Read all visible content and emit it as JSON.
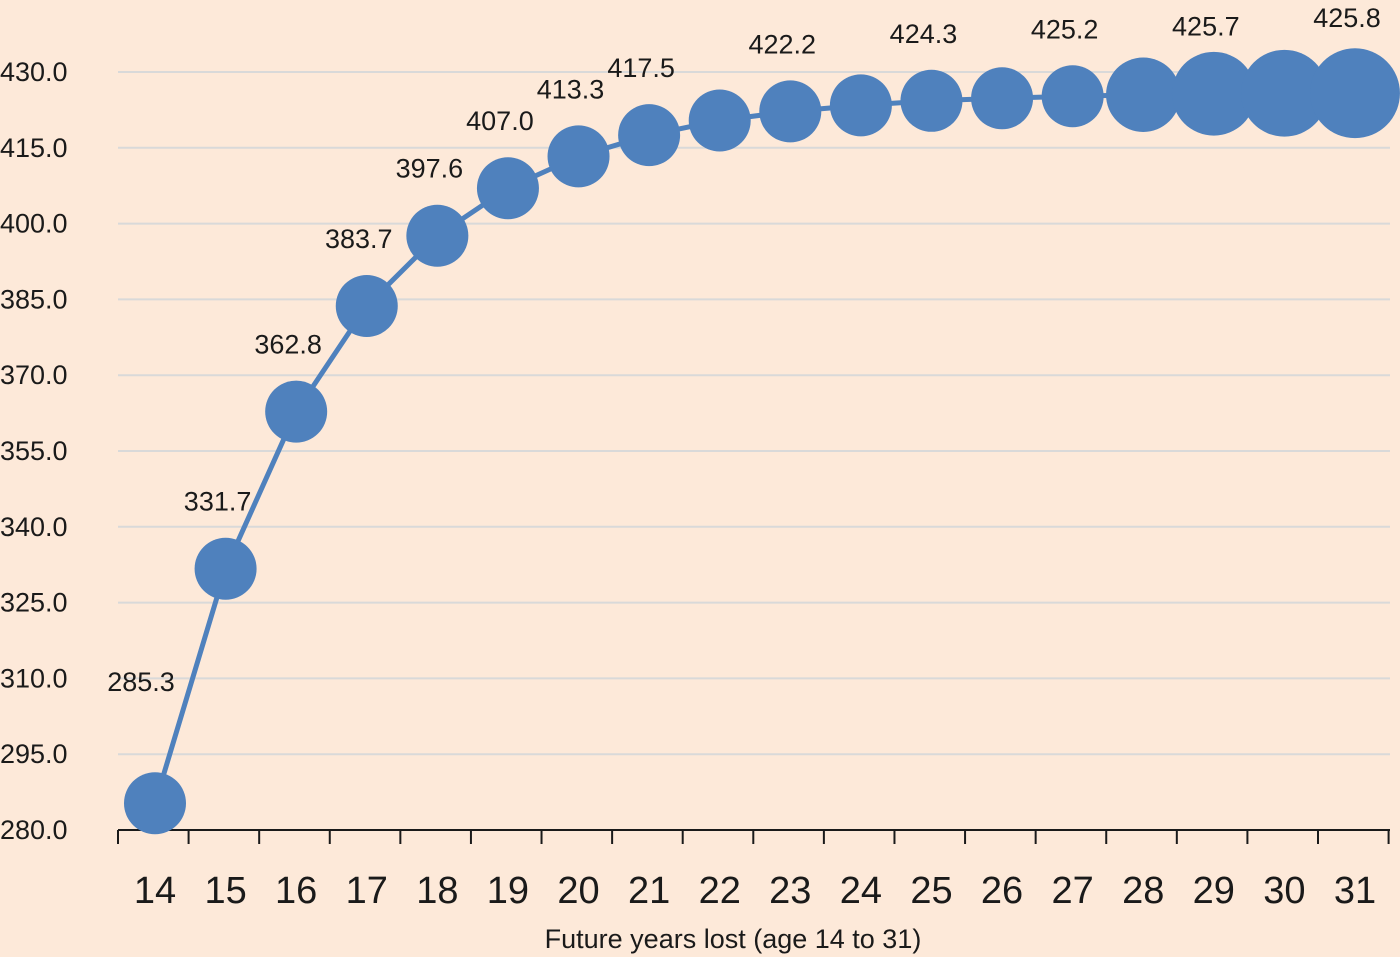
{
  "chart_data": {
    "type": "line",
    "title": "",
    "xlabel": "Future years lost (age 14 to 31)",
    "ylabel": "",
    "ylim": [
      280,
      430
    ],
    "yticks": [
      "280.0",
      "295.0",
      "310.0",
      "325.0",
      "340.0",
      "355.0",
      "370.0",
      "385.0",
      "400.0",
      "415.0",
      "430.0"
    ],
    "categories": [
      "14",
      "15",
      "16",
      "17",
      "18",
      "19",
      "20",
      "21",
      "22",
      "23",
      "24",
      "25",
      "26",
      "27",
      "28",
      "29",
      "30",
      "31"
    ],
    "series": [
      {
        "values": [
          285.3,
          331.7,
          362.8,
          383.7,
          397.6,
          407.0,
          413.3,
          417.5,
          420.4,
          422.2,
          423.4,
          424.3,
          424.8,
          425.2,
          425.5,
          425.7,
          425.8,
          425.8
        ],
        "point_sizes": [
          1,
          1,
          1,
          1,
          1,
          1,
          1,
          1,
          1,
          1,
          1,
          1,
          1,
          1,
          1.2,
          1.35,
          1.4,
          1.45
        ]
      }
    ],
    "data_labels": [
      "285.3",
      "331.7",
      "362.8",
      "383.7",
      "397.6",
      "407.0",
      "413.3",
      "417.5",
      "",
      "422.2",
      "",
      "424.3",
      "",
      "425.2",
      "",
      "425.7",
      "",
      "425.8"
    ],
    "grid": true,
    "legend": "none",
    "colors": {
      "background": "#fde9d9",
      "series": "#4f81bd",
      "grid": "#d9d9d9",
      "axis": "#1a1a1a"
    }
  }
}
